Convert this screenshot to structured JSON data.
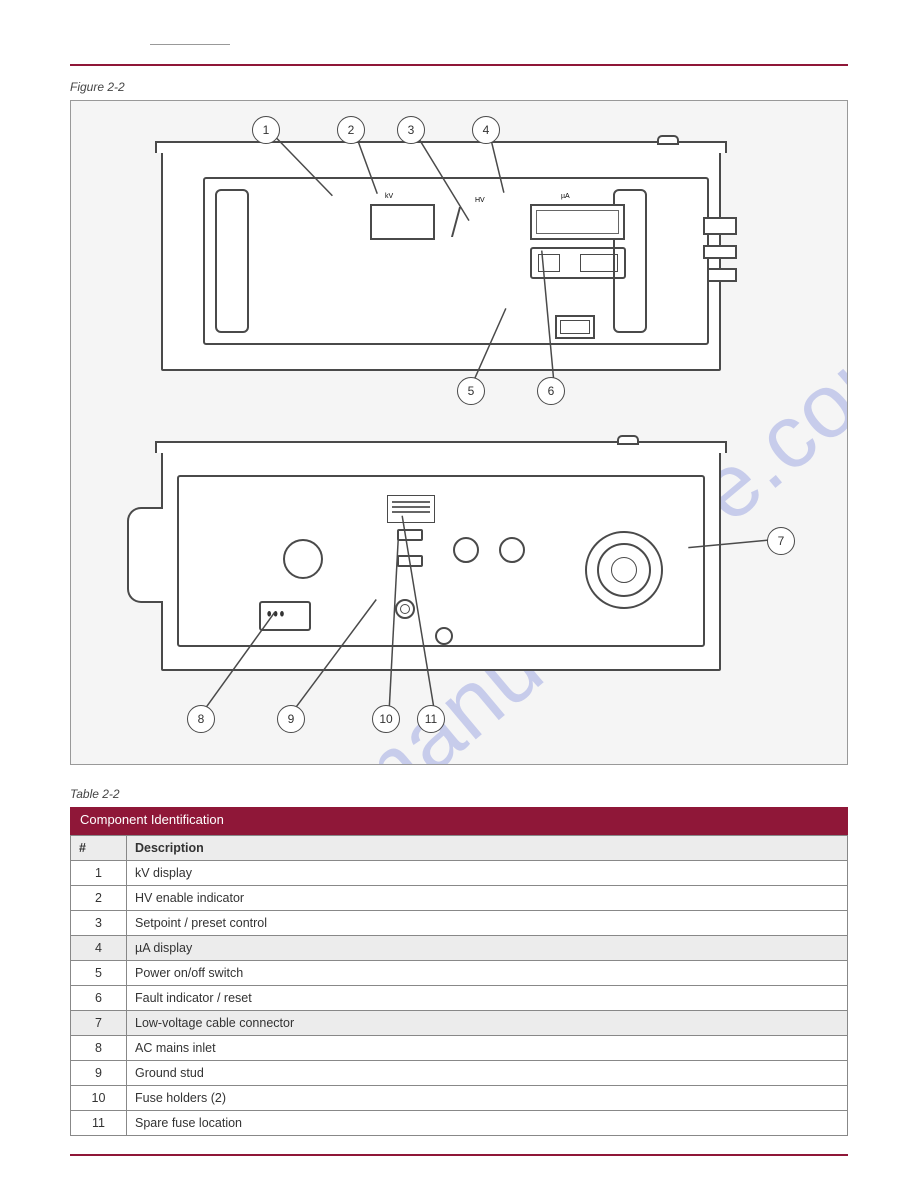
{
  "colors": {
    "accent": "#8f1738",
    "panel_bg": "#f5f5f5",
    "line": "#4a4a4a",
    "row_shade": "#ececec"
  },
  "typography": {
    "body_pt": 12.5,
    "caption_pt": 12,
    "title_pt": 13,
    "footer_pt": 11
  },
  "header": {
    "page_ref": "",
    "section": ""
  },
  "figure": {
    "caption": "Figure 2-2",
    "watermark": "manualshive.com",
    "callouts": [
      "1",
      "2",
      "3",
      "4",
      "5",
      "6",
      "7",
      "8",
      "9",
      "10",
      "11"
    ],
    "front_labels": {
      "kv": "kV",
      "hv": "HV",
      "ua": "µA"
    }
  },
  "table": {
    "caption": "Table 2-2",
    "title": "Component Identification",
    "columns": [
      "#",
      "Description"
    ],
    "rows": [
      [
        "1",
        "kV display"
      ],
      [
        "2",
        "HV enable indicator"
      ],
      [
        "3",
        "Setpoint / preset control"
      ],
      [
        "4",
        "µA display"
      ],
      [
        "5",
        "Power on/off switch"
      ],
      [
        "6",
        "Fault indicator / reset"
      ],
      [
        "7",
        "Low-voltage cable connector"
      ],
      [
        "8",
        "AC mains inlet"
      ],
      [
        "9",
        "Ground stud"
      ],
      [
        "10",
        "Fuse holders (2)"
      ],
      [
        "11",
        "Spare fuse location"
      ]
    ]
  },
  "footer": {
    "left": "",
    "center": "",
    "right": ""
  }
}
